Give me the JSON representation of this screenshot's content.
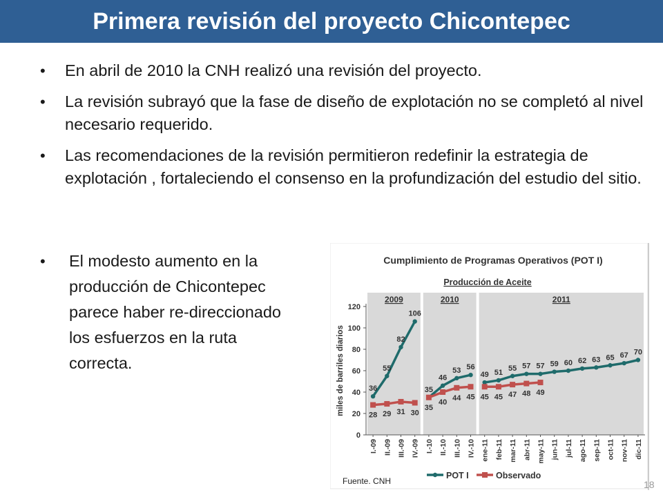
{
  "slide": {
    "title": "Primera revisión del proyecto Chicontepec",
    "bullets": [
      "En abril de 2010 la CNH realizó una revisión del proyecto.",
      "La revisión subrayó que la fase de diseño de explotación no se completó al nivel necesario requerido.",
      "Las recomendaciones de la revisión permitieron redefinir la estrategia de explotación , fortaleciendo el consenso en la profundización del estudio del sitio.",
      "El modesto aumento en la producción de Chicontepec parece haber re-direccionado los esfuerzos en la ruta correcta."
    ],
    "bullet_symbol": "•",
    "source": "Fuente. CNH",
    "page_number": "18"
  },
  "chart_data": {
    "type": "line",
    "title": "Cumplimiento de Programas Operativos (POT I)",
    "subtitle": "Producción de Aceite",
    "ylabel": "miles de barriles diarios",
    "ylim": [
      0,
      120
    ],
    "yticks": [
      0,
      20,
      40,
      60,
      80,
      100,
      120
    ],
    "periods": [
      {
        "label": "2009",
        "from": 0,
        "to": 3
      },
      {
        "label": "2010",
        "from": 4,
        "to": 7
      },
      {
        "label": "2011",
        "from": 8,
        "to": 19
      }
    ],
    "categories": [
      "I.-09",
      "II.-09",
      "III.-09",
      "IV.-09",
      "I.-10",
      "II.-10",
      "III.-10",
      "IV.-10",
      "ene-11",
      "feb-11",
      "mar-11",
      "abr-11",
      "may-11",
      "jun-11",
      "jul-11",
      "ago-11",
      "sep-11",
      "oct-11",
      "nov-11",
      "dic-11"
    ],
    "series": [
      {
        "name": "POT I",
        "color": "#1f6b6b",
        "segments": [
          [
            0,
            3
          ],
          [
            4,
            7
          ],
          [
            8,
            19
          ]
        ],
        "values": [
          36,
          55,
          82,
          106,
          35,
          46,
          53,
          56,
          49,
          51,
          55,
          57,
          57,
          59,
          60,
          62,
          63,
          65,
          67,
          70
        ]
      },
      {
        "name": "Observado",
        "color": "#c0504d",
        "segments": [
          [
            0,
            3
          ],
          [
            4,
            7
          ],
          [
            8,
            12
          ]
        ],
        "values": [
          28,
          29,
          31,
          30,
          35,
          40,
          44,
          45,
          45,
          45,
          47,
          48,
          49,
          null,
          null,
          null,
          null,
          null,
          null,
          null
        ]
      }
    ],
    "legend_position": "bottom"
  }
}
